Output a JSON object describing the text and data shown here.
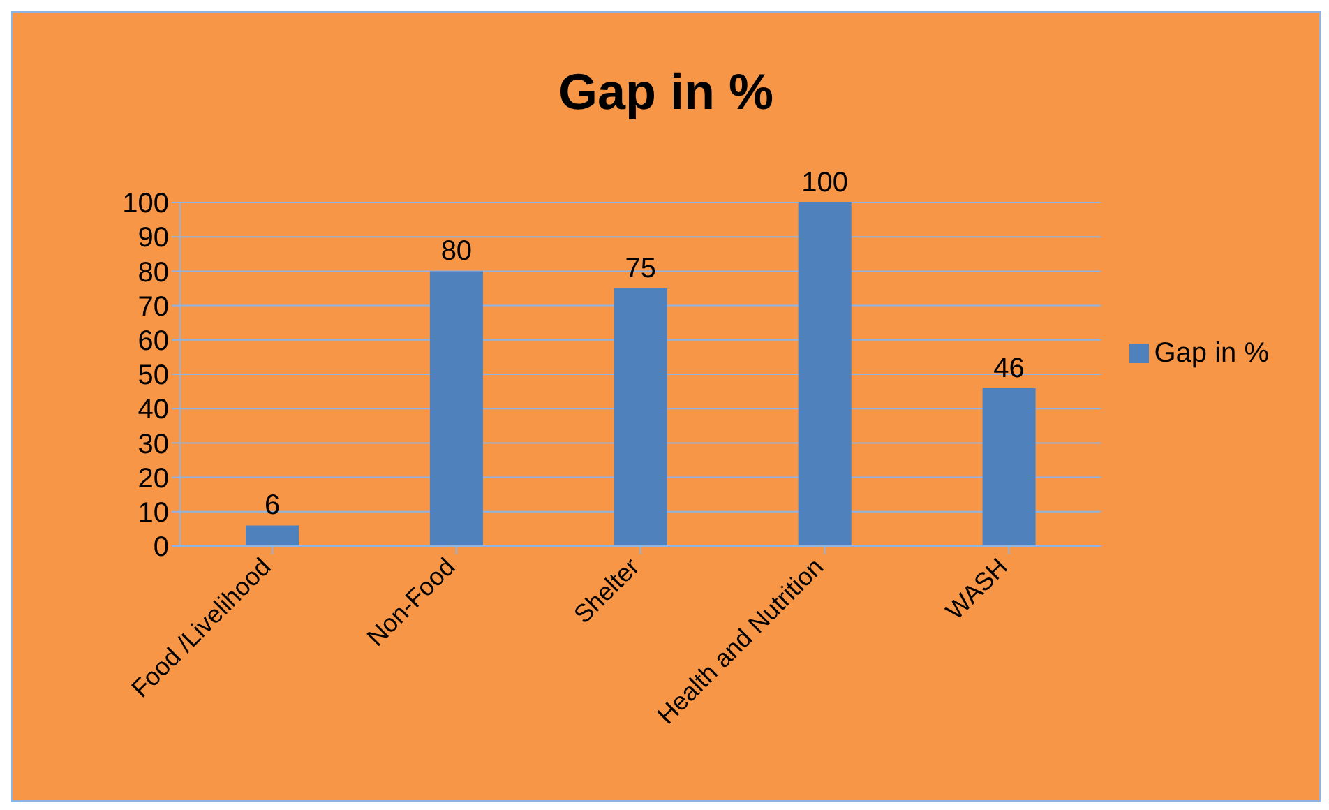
{
  "chart_data": {
    "type": "bar",
    "title": "Gap in %",
    "categories": [
      "Food /Livelihood",
      "Non-Food",
      "Shelter",
      "Health and Nutrition",
      "WASH"
    ],
    "series": [
      {
        "name": "Gap in %",
        "color": "#4f81bd",
        "values": [
          6,
          80,
          75,
          100,
          46
        ]
      }
    ],
    "ylim": [
      0,
      100
    ],
    "yticks": [
      0,
      10,
      20,
      30,
      40,
      50,
      60,
      70,
      80,
      90,
      100
    ],
    "grid": "y",
    "legend": "right",
    "data_labels": true
  }
}
